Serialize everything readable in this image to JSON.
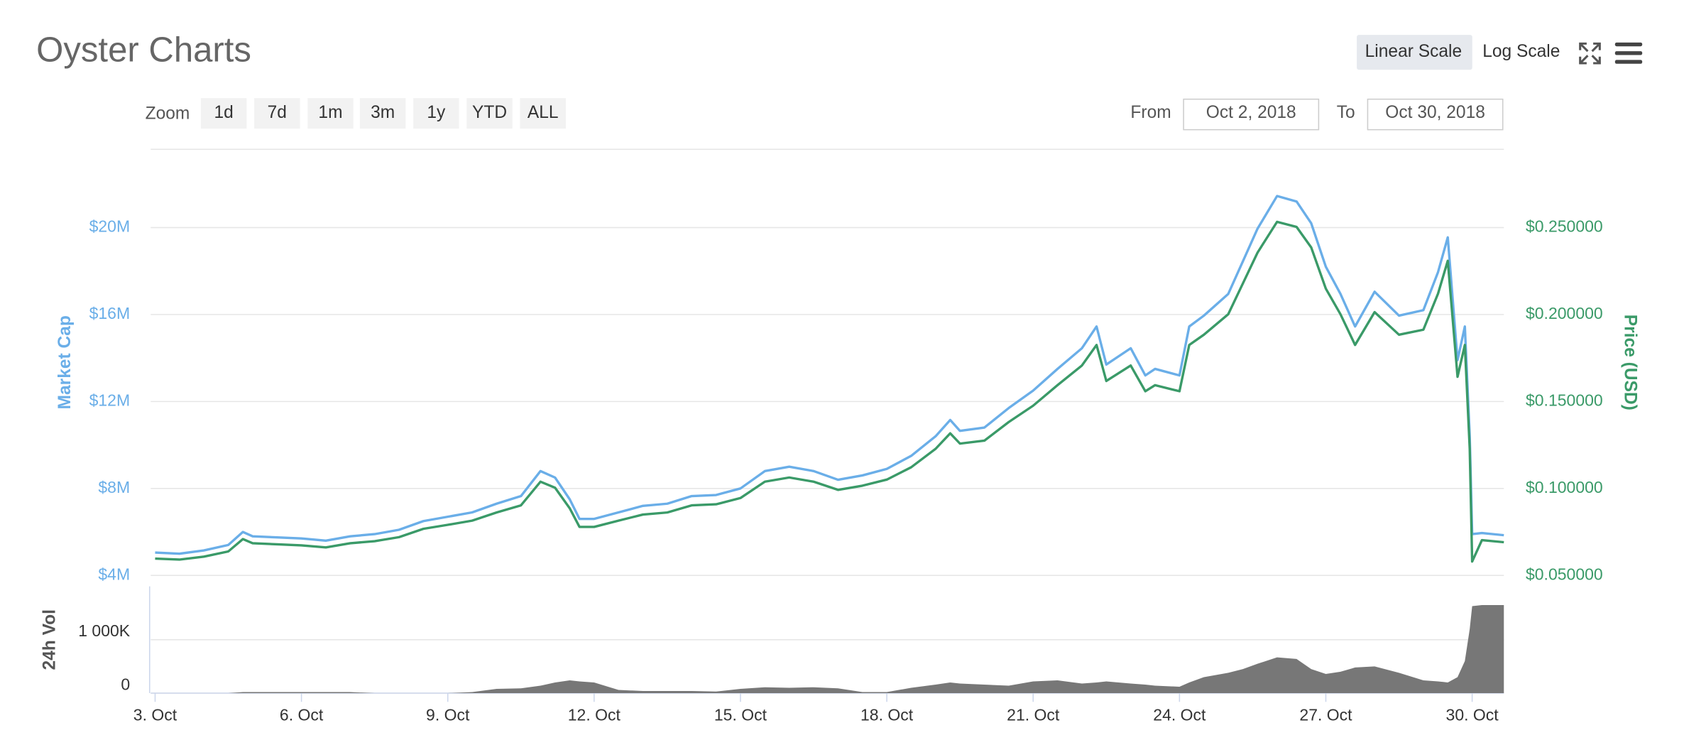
{
  "header": {
    "title": "Oyster Charts",
    "scale_buttons": [
      "Linear Scale",
      "Log Scale"
    ]
  },
  "zoom": {
    "label": "Zoom",
    "buttons": [
      "1d",
      "7d",
      "1m",
      "3m",
      "1y",
      "YTD",
      "ALL"
    ]
  },
  "range": {
    "from_label": "From",
    "from": "Oct 2, 2018",
    "to_label": "To",
    "to": "Oct 30, 2018"
  },
  "chart_data": [
    {
      "type": "line",
      "ylabel": "Market Cap",
      "y2label": "Price (USD)",
      "x": [
        3,
        3.5,
        4,
        4.5,
        4.8,
        5,
        5.5,
        6,
        6.5,
        7,
        7.5,
        8,
        8.5,
        9,
        9.5,
        10,
        10.5,
        10.9,
        11.2,
        11.5,
        11.7,
        12,
        12.5,
        13,
        13.5,
        14,
        14.5,
        15,
        15.5,
        16,
        16.5,
        17,
        17.5,
        18,
        18.5,
        19,
        19.3,
        19.5,
        20,
        20.5,
        21,
        21.5,
        22,
        22.3,
        22.5,
        23,
        23.3,
        23.5,
        24,
        24.2,
        24.5,
        25,
        25.3,
        25.6,
        26,
        26.4,
        26.7,
        27,
        27.3,
        27.6,
        28,
        28.5,
        29,
        29.3,
        29.5,
        29.7,
        29.85,
        29.95,
        30,
        30.2,
        30.65
      ],
      "xlim": [
        2.91,
        30.65
      ],
      "series": [
        {
          "color": "#6aaee8",
          "axis": "y",
          "values": [
            5050000,
            5000000,
            5150000,
            5400000,
            6000000,
            5800000,
            5750000,
            5700000,
            5600000,
            5800000,
            5900000,
            6100000,
            6500000,
            6700000,
            6900000,
            7300000,
            7650000,
            8800000,
            8500000,
            7500000,
            6600000,
            6600000,
            6900000,
            7200000,
            7300000,
            7650000,
            7700000,
            8000000,
            8800000,
            9000000,
            8800000,
            8400000,
            8600000,
            8900000,
            9500000,
            10400000,
            11150000,
            10650000,
            10800000,
            11700000,
            12500000,
            13500000,
            14450000,
            15450000,
            13700000,
            14450000,
            13200000,
            13500000,
            13200000,
            15450000,
            15950000,
            16950000,
            18450000,
            19950000,
            21450000,
            21200000,
            20200000,
            18200000,
            16950000,
            15450000,
            17050000,
            15950000,
            16200000,
            17950000,
            19550000,
            13900000,
            15450000,
            10400000,
            5900000,
            5950000,
            5850000
          ]
        },
        {
          "color": "#3a9a68",
          "axis": "y2",
          "values": [
            0.0597,
            0.0591,
            0.0608,
            0.0638,
            0.0709,
            0.0685,
            0.0679,
            0.0673,
            0.0661,
            0.0685,
            0.0697,
            0.072,
            0.0768,
            0.0791,
            0.0815,
            0.0862,
            0.0903,
            0.1039,
            0.1004,
            0.0886,
            0.0779,
            0.0779,
            0.0815,
            0.085,
            0.0862,
            0.0903,
            0.0909,
            0.0945,
            0.1039,
            0.1063,
            0.1039,
            0.0992,
            0.1016,
            0.1051,
            0.1122,
            0.1228,
            0.1317,
            0.1258,
            0.1275,
            0.1382,
            0.1476,
            0.1594,
            0.1707,
            0.1825,
            0.1618,
            0.1707,
            0.1559,
            0.1594,
            0.1559,
            0.1825,
            0.1884,
            0.2002,
            0.2179,
            0.2356,
            0.2533,
            0.2504,
            0.2386,
            0.2149,
            0.2002,
            0.1825,
            0.2014,
            0.1884,
            0.1913,
            0.212,
            0.2309,
            0.1642,
            0.1825,
            0.1228,
            0.058,
            0.0703,
            0.0691
          ]
        }
      ],
      "ylim": [
        4000000,
        23600000
      ],
      "yticks": [
        {
          "value": 4000000,
          "label": "$4M"
        },
        {
          "value": 8000000,
          "label": "$8M"
        },
        {
          "value": 12000000,
          "label": "$12M"
        },
        {
          "value": 16000000,
          "label": "$16M"
        },
        {
          "value": 20000000,
          "label": "$20M"
        }
      ],
      "y2lim": [
        0.05,
        0.295
      ],
      "y2ticks": [
        {
          "value": 0.05,
          "label": "$0.050000"
        },
        {
          "value": 0.1,
          "label": "$0.100000"
        },
        {
          "value": 0.15,
          "label": "$0.150000"
        },
        {
          "value": 0.2,
          "label": "$0.200000"
        },
        {
          "value": 0.25,
          "label": "$0.250000"
        }
      ],
      "grid": true
    },
    {
      "type": "area",
      "ylabel": "24h Vol",
      "x": [
        3,
        3.5,
        4,
        4.5,
        4.8,
        5,
        5.5,
        6,
        6.5,
        7,
        7.5,
        8,
        8.5,
        9,
        9.5,
        10,
        10.5,
        10.9,
        11.2,
        11.5,
        11.7,
        12,
        12.5,
        13,
        13.5,
        14,
        14.5,
        15,
        15.5,
        16,
        16.5,
        17,
        17.5,
        18,
        18.5,
        19,
        19.3,
        19.5,
        20,
        20.5,
        21,
        21.5,
        22,
        22.3,
        22.5,
        23,
        23.3,
        23.5,
        24,
        24.2,
        24.5,
        25,
        25.3,
        25.6,
        26,
        26.4,
        26.7,
        27,
        27.3,
        27.6,
        28,
        28.5,
        29,
        29.3,
        29.5,
        29.7,
        29.85,
        29.95,
        30,
        30.2,
        30.65
      ],
      "xlim": [
        2.91,
        30.65
      ],
      "xticks": [
        {
          "value": 3,
          "label": "3. Oct"
        },
        {
          "value": 6,
          "label": "6. Oct"
        },
        {
          "value": 9,
          "label": "9. Oct"
        },
        {
          "value": 12,
          "label": "12. Oct"
        },
        {
          "value": 15,
          "label": "15. Oct"
        },
        {
          "value": 18,
          "label": "18. Oct"
        },
        {
          "value": 21,
          "label": "21. Oct"
        },
        {
          "value": 24,
          "label": "24. Oct"
        },
        {
          "value": 27,
          "label": "27. Oct"
        },
        {
          "value": 30,
          "label": "30. Oct"
        }
      ],
      "color": "#777777",
      "values": [
        0,
        0,
        0,
        0,
        20000,
        20000,
        20000,
        20000,
        20000,
        20000,
        0,
        0,
        0,
        0,
        20000,
        80000,
        90000,
        140000,
        200000,
        240000,
        220000,
        200000,
        60000,
        40000,
        40000,
        40000,
        30000,
        80000,
        110000,
        100000,
        110000,
        90000,
        20000,
        20000,
        100000,
        160000,
        200000,
        180000,
        160000,
        140000,
        220000,
        240000,
        180000,
        200000,
        220000,
        180000,
        160000,
        140000,
        120000,
        200000,
        300000,
        380000,
        450000,
        550000,
        670000,
        640000,
        450000,
        360000,
        400000,
        480000,
        500000,
        380000,
        240000,
        220000,
        200000,
        300000,
        600000,
        1200000,
        1630000,
        1650000,
        1650000
      ],
      "ylim": [
        0,
        2000000
      ],
      "yticks": [
        0,
        {
          "value": 1000000,
          "label": "1 000K"
        }
      ],
      "grid": true
    }
  ]
}
